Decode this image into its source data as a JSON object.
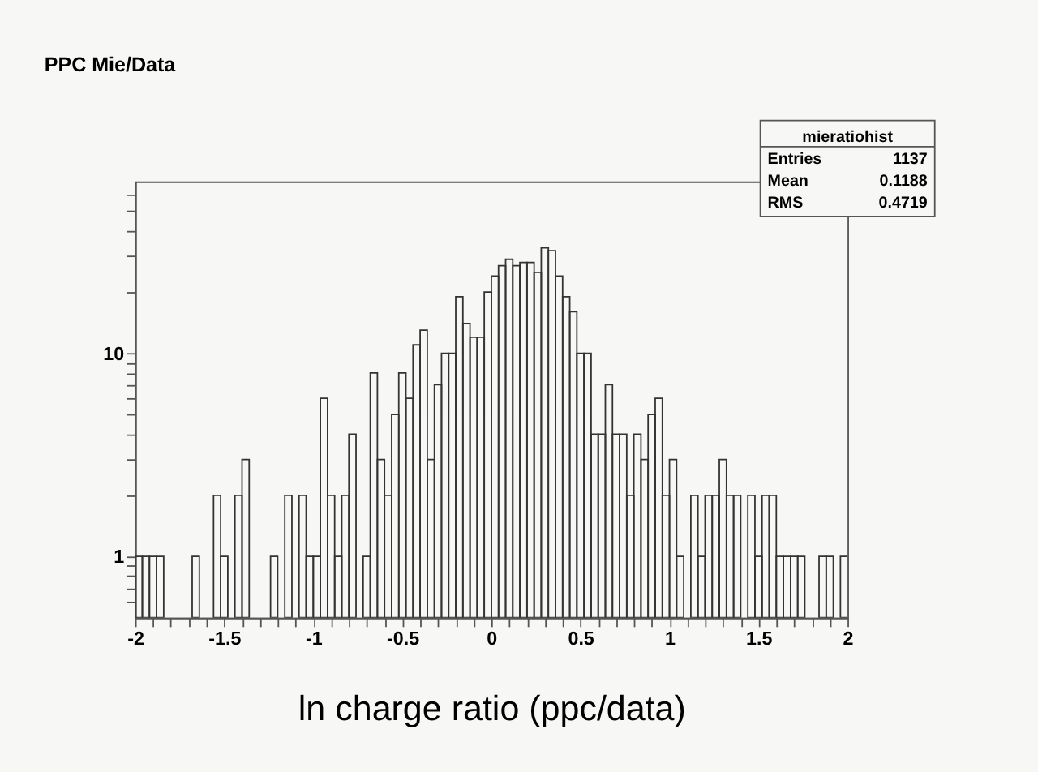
{
  "chart_data": {
    "type": "histogram",
    "title": "PPC Mie/Data",
    "xlabel": "ln charge ratio (ppc/data)",
    "annotations": [
      "mieratiohist",
      "Entries 1137",
      "Mean 0.1188",
      "RMS 0.4719"
    ],
    "bins": [
      -2,
      -1.96,
      -1.92,
      -1.88,
      -1.84,
      -1.8,
      -1.76,
      -1.72,
      -1.68,
      -1.64,
      -1.6,
      -1.56,
      -1.52,
      -1.48,
      -1.44,
      -1.4,
      -1.36,
      -1.32,
      -1.28,
      -1.24,
      -1.2,
      -1.16,
      -1.12,
      -1.08,
      -1.04,
      -1,
      -0.96,
      -0.92,
      -0.88,
      -0.84,
      -0.8,
      -0.76,
      -0.72,
      -0.68,
      -0.64,
      -0.6,
      -0.56,
      -0.52,
      -0.48,
      -0.44,
      -0.4,
      -0.36,
      -0.32,
      -0.28,
      -0.24,
      -0.2,
      -0.16,
      -0.12,
      -0.08,
      -0.04,
      0,
      0.04,
      0.08,
      0.12,
      0.16,
      0.2,
      0.24,
      0.28,
      0.32,
      0.36,
      0.4,
      0.44,
      0.48,
      0.52,
      0.56,
      0.6,
      0.64,
      0.68,
      0.72,
      0.76,
      0.8,
      0.84,
      0.88,
      0.92,
      0.96,
      1,
      1.04,
      1.08,
      1.12,
      1.16,
      1.2,
      1.24,
      1.28,
      1.32,
      1.36,
      1.4,
      1.44,
      1.48,
      1.52,
      1.56,
      1.6,
      1.64,
      1.68,
      1.72,
      1.76,
      1.8,
      1.84,
      1.88,
      1.92,
      1.96,
      2
    ],
    "values": [
      1,
      1,
      1,
      1,
      null,
      null,
      null,
      null,
      1,
      null,
      null,
      2,
      1,
      null,
      2,
      3,
      null,
      null,
      null,
      1,
      null,
      2,
      null,
      2,
      1,
      1,
      6,
      2,
      1,
      2,
      4,
      null,
      1,
      8,
      3,
      2,
      5,
      8,
      6,
      11,
      13,
      3,
      7,
      10,
      10,
      19,
      14,
      12,
      12,
      20,
      24,
      27,
      29,
      27,
      28,
      28,
      25,
      33,
      32,
      24,
      19,
      16,
      10,
      10,
      4,
      4,
      7,
      4,
      4,
      2,
      4,
      3,
      5,
      6,
      2,
      3,
      1,
      null,
      2,
      1,
      2,
      2,
      3,
      2,
      2,
      null,
      2,
      1,
      2,
      2,
      1,
      1,
      1,
      1,
      null,
      null,
      1,
      1,
      null,
      1
    ],
    "color": "#333333",
    "log": "y",
    "xlim": [
      -2,
      2
    ],
    "xticks": [
      -2,
      {
        "value": -1.9,
        "label": null
      },
      {
        "value": -1.8,
        "label": null
      },
      {
        "value": -1.7,
        "label": null
      },
      {
        "value": -1.6,
        "label": null
      },
      -1.5,
      {
        "value": -1.4,
        "label": null
      },
      {
        "value": -1.3,
        "label": null
      },
      {
        "value": -1.2,
        "label": null
      },
      {
        "value": -1.1,
        "label": null
      },
      -1,
      {
        "value": -0.9,
        "label": null
      },
      {
        "value": -0.8,
        "label": null
      },
      {
        "value": -0.7,
        "label": null
      },
      {
        "value": -0.6,
        "label": null
      },
      -0.5,
      {
        "value": -0.4,
        "label": null
      },
      {
        "value": -0.3,
        "label": null
      },
      {
        "value": -0.2,
        "label": null
      },
      {
        "value": -0.1,
        "label": null
      },
      0,
      {
        "value": 0.1,
        "label": null
      },
      {
        "value": 0.2,
        "label": null
      },
      {
        "value": 0.3,
        "label": null
      },
      {
        "value": 0.4,
        "label": null
      },
      0.5,
      {
        "value": 0.6,
        "label": null
      },
      {
        "value": 0.7,
        "label": null
      },
      {
        "value": 0.8,
        "label": null
      },
      {
        "value": 0.9,
        "label": null
      },
      1,
      {
        "value": 1.1,
        "label": null
      },
      {
        "value": 1.2,
        "label": null
      },
      {
        "value": 1.3,
        "label": null
      },
      {
        "value": 1.4,
        "label": null
      },
      1.5,
      {
        "value": 1.6,
        "label": null
      },
      {
        "value": 1.7,
        "label": null
      },
      {
        "value": 1.8,
        "label": null
      },
      {
        "value": 1.9,
        "label": null
      },
      2
    ],
    "ylim": [
      0.5,
      70
    ],
    "yticks": [
      {
        "value": 0.6,
        "label": null
      },
      {
        "value": 0.7,
        "label": null
      },
      {
        "value": 0.8,
        "label": null
      },
      {
        "value": 0.9,
        "label": null
      },
      1,
      {
        "value": 2,
        "label": null
      },
      {
        "value": 3,
        "label": null
      },
      {
        "value": 4,
        "label": null
      },
      {
        "value": 5,
        "label": null
      },
      {
        "value": 6,
        "label": null
      },
      {
        "value": 7,
        "label": null
      },
      {
        "value": 8,
        "label": null
      },
      {
        "value": 9,
        "label": null
      },
      10,
      {
        "value": 20,
        "label": null
      },
      {
        "value": 30,
        "label": null
      },
      {
        "value": 40,
        "label": null
      },
      {
        "value": 50,
        "label": null
      },
      {
        "value": 60,
        "label": null
      }
    ],
    "grid": false
  }
}
